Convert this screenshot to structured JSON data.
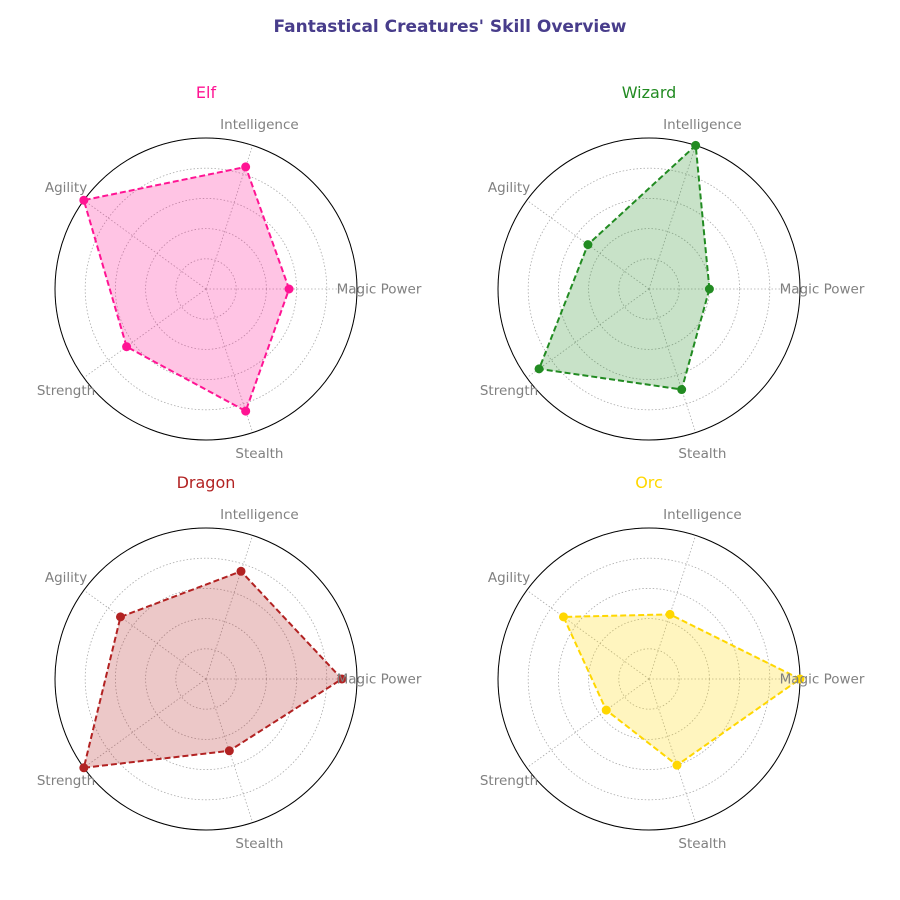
{
  "title": "Fantastical Creatures' Skill Overview",
  "title_color": "#483D8B",
  "chart_data": [
    {
      "type": "radar",
      "title": "Elf",
      "color": "#FF1493",
      "fill_color": "#FFC0E0",
      "categories": [
        "Magic Power",
        "Intelligence",
        "Agility",
        "Strength",
        "Stealth"
      ],
      "values": [
        55,
        85,
        100,
        65,
        85
      ],
      "rlim": [
        0,
        100
      ],
      "grid": true,
      "line_style": "dashed"
    },
    {
      "type": "radar",
      "title": "Wizard",
      "color": "#228B22",
      "fill_color": "#C8E2C8",
      "categories": [
        "Magic Power",
        "Intelligence",
        "Agility",
        "Strength",
        "Stealth"
      ],
      "values": [
        40,
        100,
        50,
        90,
        70
      ],
      "rlim": [
        0,
        100
      ],
      "grid": true,
      "line_style": "dashed"
    },
    {
      "type": "radar",
      "title": "Dragon",
      "color": "#B22222",
      "fill_color": "#E8C4C4",
      "categories": [
        "Magic Power",
        "Intelligence",
        "Agility",
        "Strength",
        "Stealth"
      ],
      "values": [
        90,
        75,
        70,
        100,
        50
      ],
      "rlim": [
        0,
        100
      ],
      "grid": true,
      "line_style": "dashed"
    },
    {
      "type": "radar",
      "title": "Orc",
      "color": "#FFD700",
      "fill_color": "#FFF2BF",
      "categories": [
        "Magic Power",
        "Intelligence",
        "Agility",
        "Strength",
        "Stealth"
      ],
      "values": [
        100,
        45,
        70,
        35,
        60
      ],
      "rlim": [
        0,
        100
      ],
      "grid": true,
      "line_style": "dashed"
    }
  ]
}
